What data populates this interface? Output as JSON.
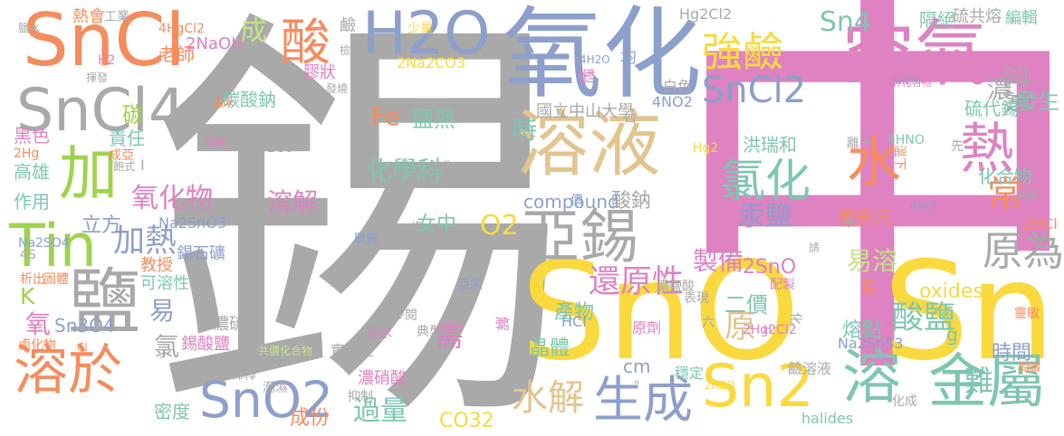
{
  "palette": {
    "gray": "#a9a9a9",
    "pink": "#de82c2",
    "yellow": "#f9d93e",
    "orange": "#f58c5e",
    "blue": "#8d9fcb",
    "green": "#9fd34c",
    "tan": "#e2c48f",
    "teal": "#7fc6b1",
    "lightgreen": "#c7e28b",
    "peach": "#f6b890"
  },
  "words": [
    {
      "t": "錫",
      "c": "gray"
    },
    {
      "t": "中",
      "c": "pink"
    },
    {
      "t": "SnO",
      "c": "yellow"
    },
    {
      "t": "Sn",
      "c": "yellow"
    },
    {
      "t": "氧化",
      "c": "blue"
    },
    {
      "t": "SnCl",
      "c": "orange"
    },
    {
      "t": "空氣",
      "c": "pink"
    },
    {
      "t": "H2O",
      "c": "blue"
    },
    {
      "t": "溶液",
      "c": "tan"
    },
    {
      "t": "亞錫",
      "c": "gray"
    },
    {
      "t": "鹽",
      "c": "gray"
    },
    {
      "t": "SnCl4",
      "c": "gray"
    },
    {
      "t": "加",
      "c": "green"
    },
    {
      "t": "Tin",
      "c": "green"
    },
    {
      "t": "溶於",
      "c": "orange"
    },
    {
      "t": "金屬",
      "c": "teal"
    },
    {
      "t": "Sn2",
      "c": "yellow"
    },
    {
      "t": "生成",
      "c": "blue"
    },
    {
      "t": "SnO2",
      "c": "blue"
    },
    {
      "t": "水",
      "c": "orange"
    },
    {
      "t": "溶",
      "c": "teal"
    },
    {
      "t": "熱",
      "c": "pink"
    },
    {
      "t": "強鹼",
      "c": "yellow"
    },
    {
      "t": "酸",
      "c": "orange"
    },
    {
      "t": "SnCl2",
      "c": "blue"
    },
    {
      "t": "氯化",
      "c": "teal"
    },
    {
      "t": "水解",
      "c": "tan"
    },
    {
      "t": "Sn4",
      "c": "teal"
    },
    {
      "t": "原為",
      "c": "gray"
    },
    {
      "t": "還原性",
      "c": "pink"
    },
    {
      "t": "酸鹽",
      "c": "teal"
    },
    {
      "t": "過量",
      "c": "teal"
    },
    {
      "t": "難",
      "c": "teal"
    },
    {
      "t": "加熱",
      "c": "blue"
    },
    {
      "t": "氧化物",
      "c": "pink"
    },
    {
      "t": "O2",
      "c": "yellow"
    },
    {
      "t": "成",
      "c": "lightgreen"
    },
    {
      "t": "沉澱",
      "c": "gray"
    },
    {
      "t": "常",
      "c": "orange"
    },
    {
      "t": "濃二",
      "c": "gray"
    },
    {
      "t": "溶解",
      "c": "pink"
    },
    {
      "t": "需",
      "c": "pink"
    },
    {
      "t": "原",
      "c": "tan"
    },
    {
      "t": "易溶",
      "c": "lightgreen"
    },
    {
      "t": "汞鹽",
      "c": "blue"
    },
    {
      "t": "製備",
      "c": "pink"
    },
    {
      "t": "化學科",
      "c": "teal"
    },
    {
      "t": "Fe",
      "c": "orange"
    },
    {
      "t": "鹽熱",
      "c": "teal"
    },
    {
      "t": "時",
      "c": "teal"
    },
    {
      "t": "國立中山大學",
      "c": "gray"
    },
    {
      "t": "硫代錫",
      "c": "teal"
    },
    {
      "t": "發生",
      "c": "teal"
    },
    {
      "t": "化合物",
      "c": "teal"
    },
    {
      "t": "洪瑞和",
      "c": "teal"
    },
    {
      "t": "董騰元",
      "c": "orange"
    },
    {
      "t": "2SnO",
      "c": "pink"
    },
    {
      "t": "二價",
      "c": "teal"
    },
    {
      "t": "產物",
      "c": "teal"
    },
    {
      "t": "晶體",
      "c": "teal"
    },
    {
      "t": "cm",
      "c": "blue"
    },
    {
      "t": "oxides",
      "c": "yellow"
    },
    {
      "t": "熔點",
      "c": "teal"
    },
    {
      "t": "時間",
      "c": "blue"
    },
    {
      "t": "CO32",
      "c": "yellow"
    },
    {
      "t": "成份",
      "c": "orange"
    },
    {
      "t": "密度",
      "c": "teal"
    },
    {
      "t": "compound",
      "c": "blue"
    },
    {
      "t": "酸鈉",
      "c": "gray"
    },
    {
      "t": "女中",
      "c": "teal"
    },
    {
      "t": "錫石礦",
      "c": "blue"
    },
    {
      "t": "濃硫酸",
      "c": "gray"
    },
    {
      "t": "Na2SnO3",
      "c": "blue"
    },
    {
      "t": "立方",
      "c": "blue"
    },
    {
      "t": "教授",
      "c": "orange"
    },
    {
      "t": "可溶性",
      "c": "teal"
    },
    {
      "t": "易",
      "c": "blue"
    },
    {
      "t": "氯",
      "c": "gray"
    },
    {
      "t": "錫酸鹽",
      "c": "pink"
    },
    {
      "t": "Sn3O4",
      "c": "blue"
    },
    {
      "t": "氧",
      "c": "pink"
    },
    {
      "t": "K",
      "c": "green"
    },
    {
      "t": "黑色",
      "c": "pink"
    },
    {
      "t": "高雄",
      "c": "teal"
    },
    {
      "t": "作用",
      "c": "teal"
    },
    {
      "t": "責任",
      "c": "teal"
    },
    {
      "t": "碳",
      "c": "green"
    },
    {
      "t": "碳酸鈉",
      "c": "teal"
    },
    {
      "t": "老師",
      "c": "orange"
    },
    {
      "t": "熱會",
      "c": "orange"
    },
    {
      "t": "工業",
      "c": "gray"
    },
    {
      "t": "2NaOH",
      "c": "pink"
    },
    {
      "t": "膠狀",
      "c": "pink"
    },
    {
      "t": "g",
      "c": "teal"
    },
    {
      "t": "隔絕",
      "c": "teal"
    },
    {
      "t": "硫共熔",
      "c": "gray"
    },
    {
      "t": "編輯",
      "c": "teal"
    },
    {
      "t": "白色",
      "c": "gray"
    },
    {
      "t": "均",
      "c": "blue"
    },
    {
      "t": "Hg2Cl2",
      "c": "gray"
    },
    {
      "t": "鹼",
      "c": "gray"
    },
    {
      "t": "少量",
      "c": "yellow"
    },
    {
      "t": "4H2O",
      "c": "blue"
    },
    {
      "t": "製",
      "c": "pink"
    },
    {
      "t": "2Na2CO3",
      "c": "yellow"
    },
    {
      "t": "4NO2",
      "c": "blue"
    },
    {
      "t": "鉀化合物",
      "c": "pink"
    },
    {
      "t": "SnCl6",
      "c": "blue"
    },
    {
      "t": "離子",
      "c": "gray"
    },
    {
      "t": "4HNO",
      "c": "teal"
    },
    {
      "t": "Hg2",
      "c": "yellow"
    },
    {
      "t": "溫下",
      "c": "orange"
    },
    {
      "t": "先",
      "c": "gray"
    },
    {
      "t": "4HCl",
      "c": "blue"
    },
    {
      "t": "2HCl",
      "c": "orange"
    },
    {
      "t": "2CO",
      "c": "gray"
    },
    {
      "t": "中生",
      "c": "gray"
    },
    {
      "t": "價",
      "c": "blue"
    },
    {
      "t": "進一步",
      "c": "gray"
    },
    {
      "t": "單質",
      "c": "blue"
    },
    {
      "t": "共價化合物",
      "c": "lightgreen"
    },
    {
      "t": "實驗室",
      "c": "gray"
    },
    {
      "t": "濃硝酸",
      "c": "pink"
    },
    {
      "t": "抑制",
      "c": "gray"
    },
    {
      "t": "潮濕",
      "c": "gray"
    },
    {
      "t": "稀釋",
      "c": "gray"
    },
    {
      "t": "易水",
      "c": "pink"
    },
    {
      "t": "典型",
      "c": "gray"
    },
    {
      "t": "參閱",
      "c": "gray"
    },
    {
      "t": "亞汞",
      "c": "blue"
    },
    {
      "t": "濃鹽酸",
      "c": "gray"
    },
    {
      "t": "配製",
      "c": "pink"
    },
    {
      "t": "表現",
      "c": "gray"
    },
    {
      "t": "長",
      "c": "orange"
    },
    {
      "t": "HCl",
      "c": "blue"
    },
    {
      "t": "原劑",
      "c": "pink"
    },
    {
      "t": "解",
      "c": "pink"
    },
    {
      "t": "六",
      "c": "gray"
    },
    {
      "t": "H",
      "c": "pink"
    },
    {
      "t": "化",
      "c": "gray"
    },
    {
      "t": "靈敏",
      "c": "orange"
    },
    {
      "t": "閱讀",
      "c": "orange"
    },
    {
      "t": "2Hg2Cl2",
      "c": "pink"
    },
    {
      "t": "鹼溶液",
      "c": "gray"
    },
    {
      "t": "Na2SnS3",
      "c": "blue"
    },
    {
      "t": "穩定",
      "c": "teal"
    },
    {
      "t": "2H2O",
      "c": "yellow"
    },
    {
      "t": "化成",
      "c": "gray"
    },
    {
      "t": "halides",
      "c": "teal"
    },
    {
      "t": "Na2SO4",
      "c": "blue"
    },
    {
      "t": "4S",
      "c": "gray"
    },
    {
      "t": "析出",
      "c": "orange"
    },
    {
      "t": "固體",
      "c": "orange"
    },
    {
      "t": "鹵化物",
      "c": "orange"
    },
    {
      "t": "Cl",
      "c": "orange"
    },
    {
      "t": "2Hg",
      "c": "orange"
    },
    {
      "t": "飽式",
      "c": "gray"
    },
    {
      "t": "成亞",
      "c": "orange"
    },
    {
      "t": "I",
      "c": "gray"
    },
    {
      "t": "鹽水",
      "c": "gray"
    },
    {
      "t": "4HgCl2",
      "c": "orange"
    },
    {
      "t": "H2",
      "c": "pink"
    },
    {
      "t": "揮發",
      "c": "gray"
    },
    {
      "t": "溫水",
      "c": "orange"
    },
    {
      "t": "發燒",
      "c": "gray"
    },
    {
      "t": "檢驗",
      "c": "gray"
    },
    {
      "t": "硫酸",
      "c": "gray"
    },
    {
      "t": "請",
      "c": "gray"
    },
    {
      "t": "汞",
      "c": "gray"
    },
    {
      "t": "四",
      "c": "gray"
    },
    {
      "t": "液體",
      "c": "pink"
    },
    {
      "t": "\"",
      "c": "gray"
    }
  ]
}
